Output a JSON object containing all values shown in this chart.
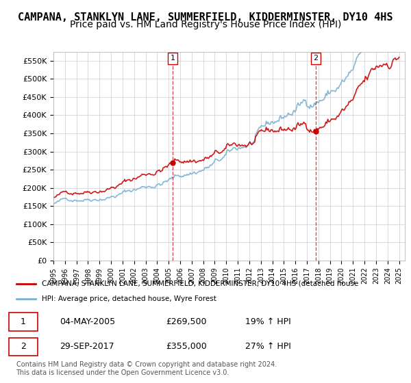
{
  "title": "CAMPANA, STANKLYN LANE, SUMMERFIELD, KIDDERMINSTER, DY10 4HS",
  "subtitle": "Price paid vs. HM Land Registry's House Price Index (HPI)",
  "ylim": [
    0,
    575000
  ],
  "yticks": [
    0,
    50000,
    100000,
    150000,
    200000,
    250000,
    300000,
    350000,
    400000,
    450000,
    500000,
    550000
  ],
  "ytick_labels": [
    "£0",
    "£50K",
    "£100K",
    "£150K",
    "£200K",
    "£250K",
    "£300K",
    "£350K",
    "£400K",
    "£450K",
    "£500K",
    "£550K"
  ],
  "year_start": 1995,
  "year_end": 2025,
  "sale1_date": "04-MAY-2005",
  "sale1_price": 269500,
  "sale1_pct": "19% ↑ HPI",
  "sale1_year": 2005.34,
  "sale2_date": "29-SEP-2017",
  "sale2_price": 355000,
  "sale2_pct": "27% ↑ HPI",
  "sale2_year": 2017.75,
  "legend_label1": "CAMPANA, STANKLYN LANE, SUMMERFIELD, KIDDERMINSTER, DY10 4HS (detached house",
  "legend_label2": "HPI: Average price, detached house, Wyre Forest",
  "red_color": "#cc0000",
  "blue_color": "#7ab0d4",
  "copyright_text": "Contains HM Land Registry data © Crown copyright and database right 2024.\nThis data is licensed under the Open Government Licence v3.0.",
  "background_color": "#ffffff",
  "plot_bg_color": "#ffffff",
  "grid_color": "#cccccc",
  "title_fontsize": 11,
  "subtitle_fontsize": 10
}
